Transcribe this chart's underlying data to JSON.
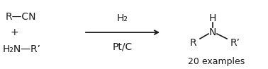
{
  "bg_color": "#ffffff",
  "fig_width": 3.78,
  "fig_height": 0.98,
  "dpi": 100,
  "reactant_line1": "R—CN",
  "reactant_plus": "+",
  "reactant_line2": "H₂N—R’",
  "arrow_label_top": "H₂",
  "arrow_label_bottom": "Pt/C",
  "product_H": "H",
  "product_N": "N",
  "product_R_left": "R",
  "product_Rprime_right": "R’",
  "product_caption": "20 examples",
  "font_size_main": 10.0,
  "font_size_caption": 9.0,
  "font_color": "#1a1a1a"
}
